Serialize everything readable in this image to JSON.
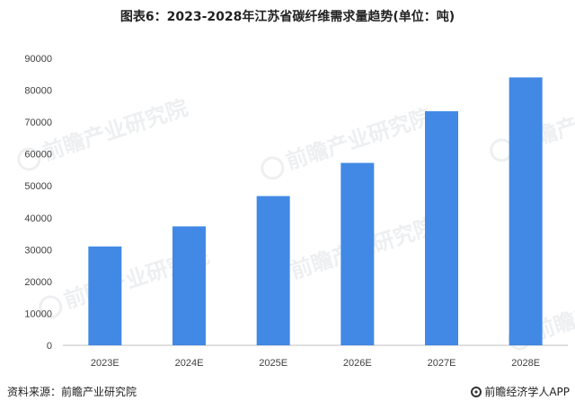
{
  "title": "图表6：2023-2028年江苏省碳纤维需求量趋势(单位：吨)",
  "footer": {
    "source": "资料来源：前瞻产业研究院",
    "brand": "前瞻经济学人APP"
  },
  "watermark": "前瞻产业研究院",
  "colors": {
    "bar": "#4289e5",
    "axis": "#bfbfbf",
    "text": "#404040"
  },
  "chart_data": {
    "type": "bar",
    "categories": [
      "2023E",
      "2024E",
      "2025E",
      "2026E",
      "2027E",
      "2028E"
    ],
    "values": [
      31000,
      37300,
      46800,
      57200,
      73400,
      84000
    ],
    "ylim": [
      0,
      90000
    ],
    "yticks": [
      0,
      10000,
      20000,
      30000,
      40000,
      50000,
      60000,
      70000,
      80000,
      90000
    ],
    "grid": false,
    "legend": "none"
  }
}
